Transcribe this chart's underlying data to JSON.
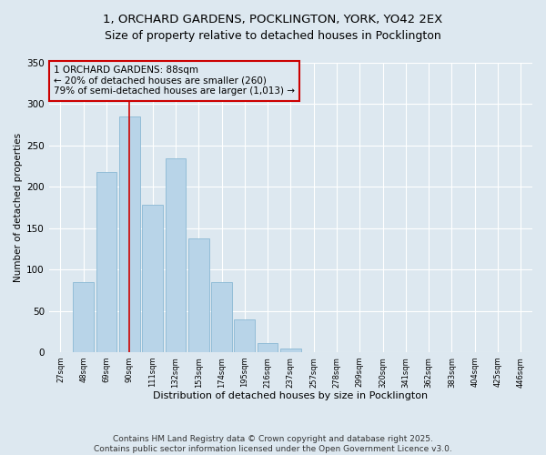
{
  "title": "1, ORCHARD GARDENS, POCKLINGTON, YORK, YO42 2EX",
  "subtitle": "Size of property relative to detached houses in Pocklington",
  "xlabel": "Distribution of detached houses by size in Pocklington",
  "ylabel": "Number of detached properties",
  "bar_labels": [
    "27sqm",
    "48sqm",
    "69sqm",
    "90sqm",
    "111sqm",
    "132sqm",
    "153sqm",
    "174sqm",
    "195sqm",
    "216sqm",
    "237sqm",
    "257sqm",
    "278sqm",
    "299sqm",
    "320sqm",
    "341sqm",
    "362sqm",
    "383sqm",
    "404sqm",
    "425sqm",
    "446sqm"
  ],
  "bar_values": [
    0,
    85,
    218,
    285,
    178,
    234,
    138,
    85,
    40,
    11,
    4,
    0,
    0,
    0,
    0,
    0,
    0,
    0,
    0,
    0,
    0
  ],
  "bar_color": "#b8d4e8",
  "bar_edgecolor": "#8ab8d4",
  "vline_x": 3,
  "vline_color": "#cc0000",
  "annotation_title": "1 ORCHARD GARDENS: 88sqm",
  "annotation_line1": "← 20% of detached houses are smaller (260)",
  "annotation_line2": "79% of semi-detached houses are larger (1,013) →",
  "annotation_box_color": "#cc0000",
  "ylim": [
    0,
    350
  ],
  "yticks": [
    0,
    50,
    100,
    150,
    200,
    250,
    300,
    350
  ],
  "background_color": "#dde8f0",
  "footer_line1": "Contains HM Land Registry data © Crown copyright and database right 2025.",
  "footer_line2": "Contains public sector information licensed under the Open Government Licence v3.0.",
  "title_fontsize": 9.5,
  "annotation_fontsize": 7.5,
  "footer_fontsize": 6.5,
  "ylabel_fontsize": 7.5,
  "xlabel_fontsize": 8,
  "ytick_fontsize": 7.5,
  "xtick_fontsize": 6
}
